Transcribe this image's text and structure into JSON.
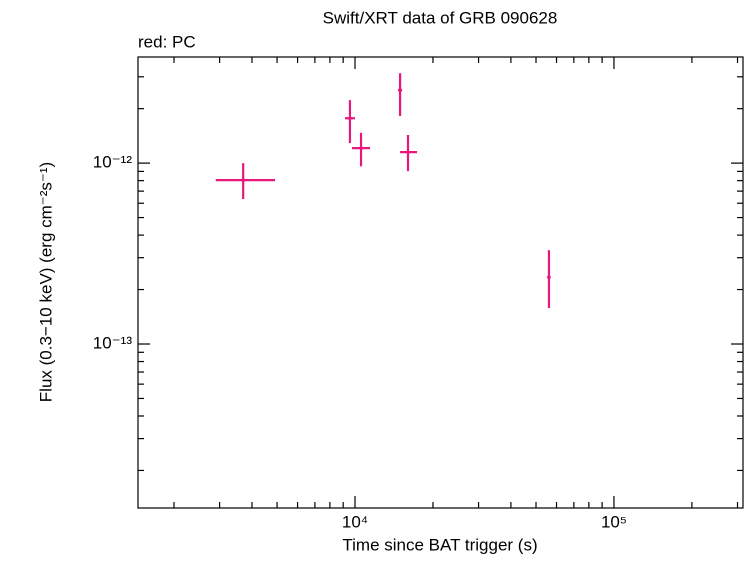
{
  "chart_data": {
    "type": "scatter",
    "title": "Swift/XRT data of GRB 090628",
    "subtitle": "red: PC",
    "x_label": "Time since BAT trigger (s)",
    "y_label": "Flux (0.3−10 keV) (erg cm⁻²s⁻¹)",
    "x_log": true,
    "y_log": true,
    "xlim": [
      1452,
      315000
    ],
    "ylim": [
      1.24e-14,
      3.86e-12
    ],
    "xticks": [
      {
        "value": 10000,
        "label": "10⁴"
      },
      {
        "value": 100000,
        "label": "10⁵"
      }
    ],
    "yticks": [
      {
        "value": 1e-13,
        "label": "10⁻¹³"
      },
      {
        "value": 1e-12,
        "label": "10⁻¹²"
      }
    ],
    "xminorticks": [
      2000,
      3000,
      4000,
      5000,
      6000,
      7000,
      8000,
      9000,
      20000,
      30000,
      40000,
      50000,
      60000,
      70000,
      80000,
      90000,
      200000,
      300000
    ],
    "yminorticks": [
      2e-14,
      3e-14,
      4e-14,
      5e-14,
      6e-14,
      7e-14,
      8e-14,
      9e-14,
      2e-13,
      3e-13,
      4e-13,
      5e-13,
      6e-13,
      7e-13,
      8e-13,
      9e-13,
      2e-12,
      3e-12
    ],
    "series": [
      {
        "color": "#e8177d",
        "x": [
          3700,
          9560,
          10550,
          14930,
          16020,
          56100
        ],
        "x_low": [
          2900,
          9150,
          9740,
          14650,
          14930,
          55300
        ],
        "x_high": [
          4910,
          10000,
          11430,
          15200,
          17360,
          56900
        ],
        "y": [
          8.05e-13,
          1.77e-12,
          1.21e-12,
          2.53e-12,
          1.15e-12,
          2.34e-13
        ],
        "y_low": [
          6.33e-13,
          1.29e-12,
          9.6e-13,
          1.82e-12,
          9.03e-13,
          1.58e-13
        ],
        "y_high": [
          1e-12,
          2.23e-12,
          1.47e-12,
          3.14e-12,
          1.43e-12,
          3.3e-13
        ]
      }
    ]
  }
}
